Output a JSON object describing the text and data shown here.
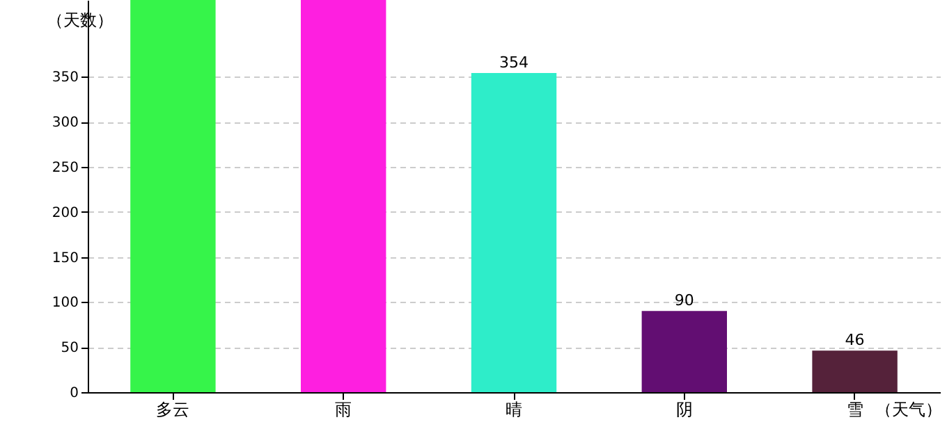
{
  "chart_data": {
    "type": "bar",
    "xlabel": "（天气）",
    "ylabel": "（天数）",
    "categories": [
      "多云",
      "雨",
      "晴",
      "阴",
      "雪"
    ],
    "values": [
      435,
      435,
      354,
      90,
      46
    ],
    "colors": [
      "#36f44a",
      "#fe1fe0",
      "#2eedc9",
      "#620e72",
      "#55223a"
    ],
    "value_labels": [
      null,
      null,
      "354",
      "90",
      "46"
    ],
    "ylim": [
      0,
      435
    ],
    "yticks": [
      0,
      50,
      100,
      150,
      200,
      250,
      300,
      350
    ],
    "grid": "y"
  }
}
